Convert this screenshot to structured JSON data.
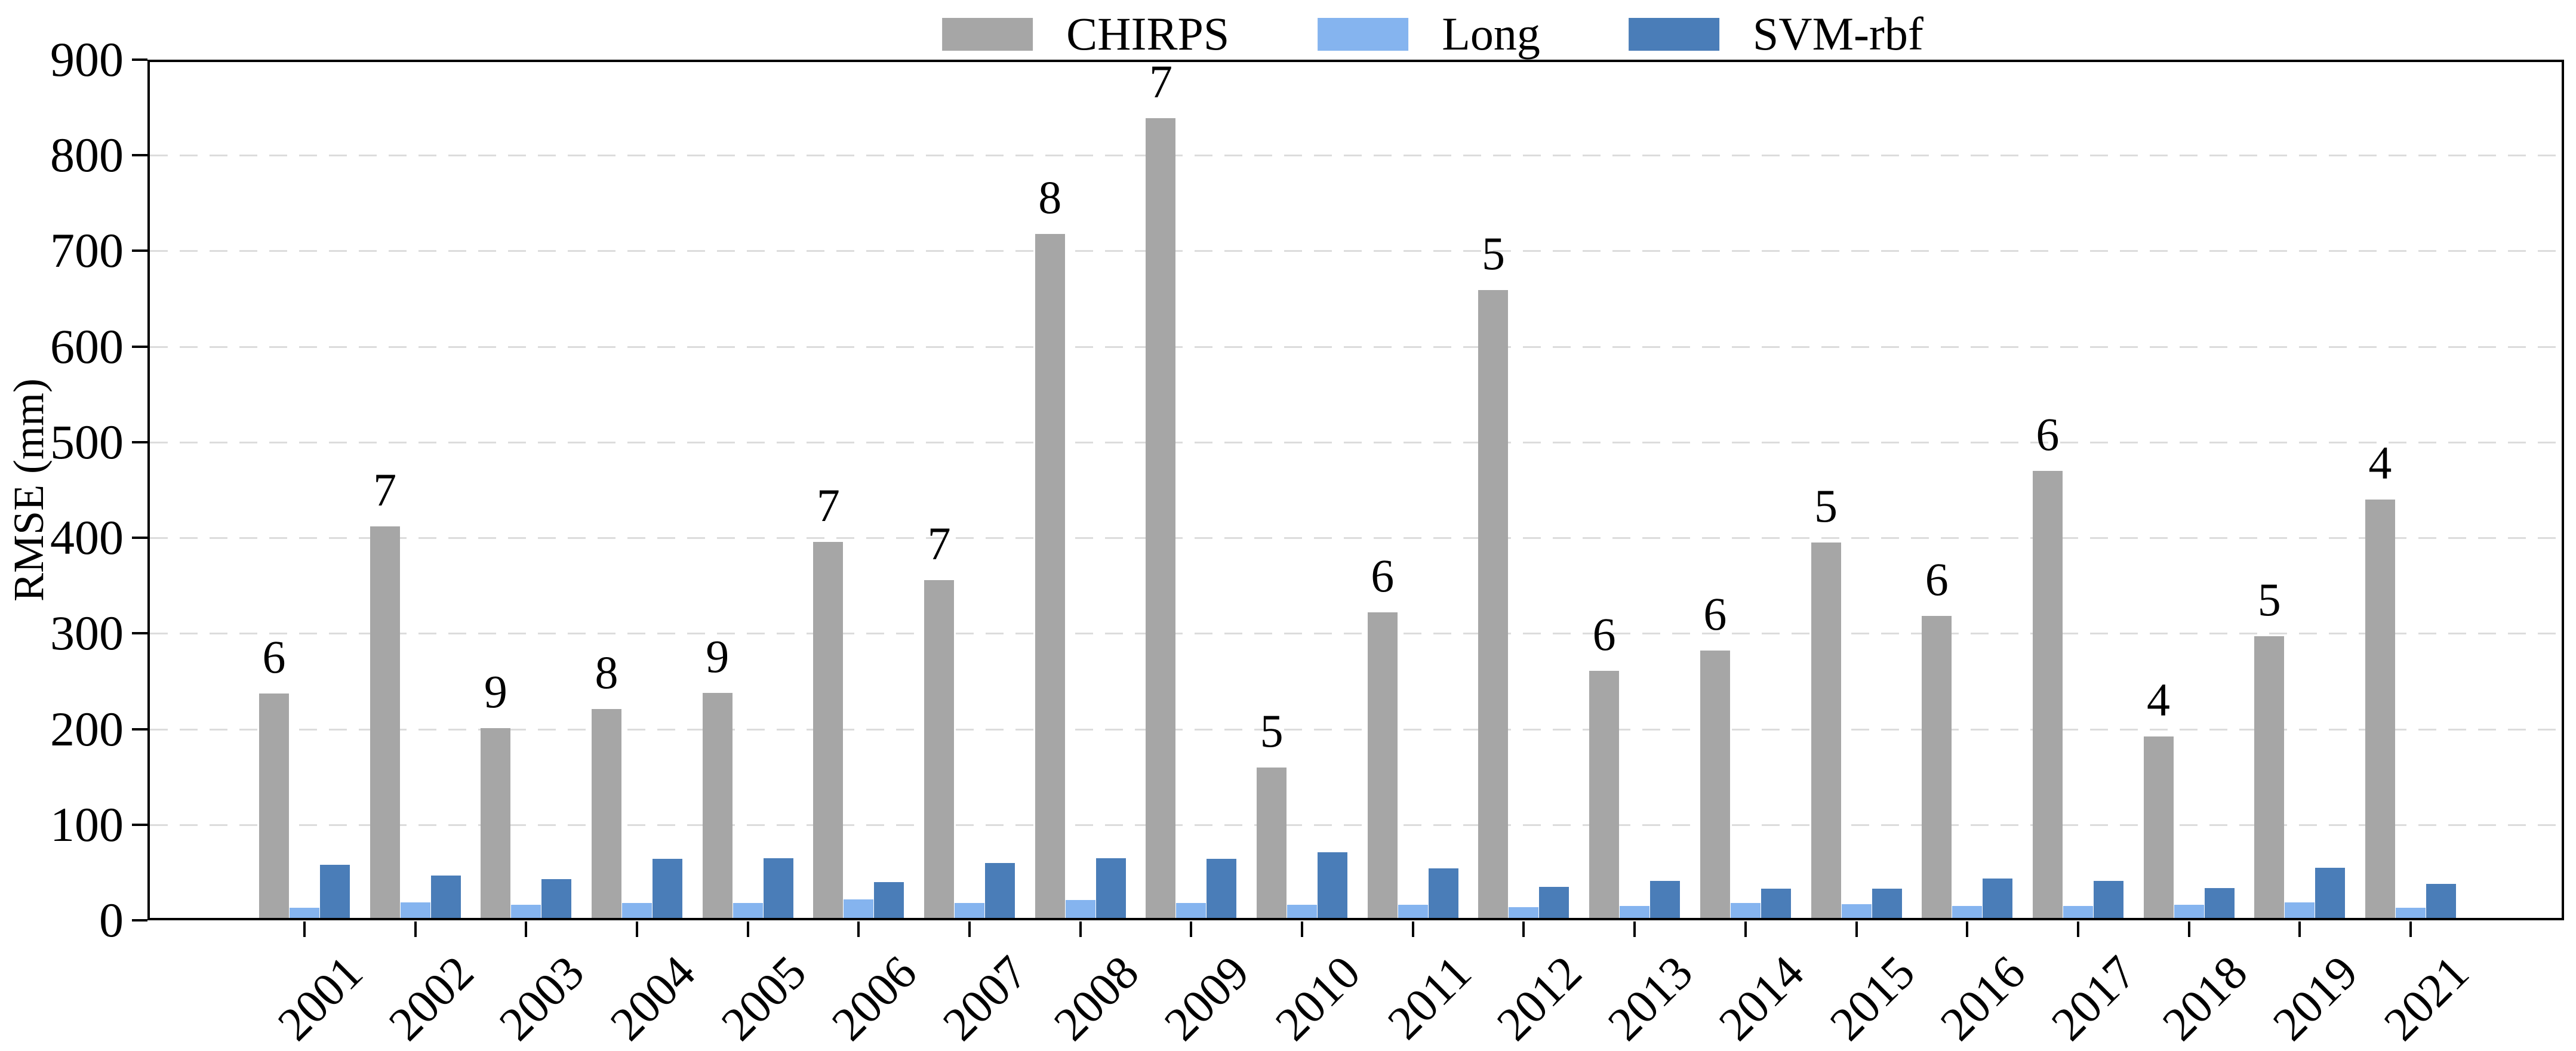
{
  "figure": {
    "background": "#ffffff",
    "spine_color": "#000000",
    "gridline_color": "#dcdcdc"
  },
  "legend": {
    "position": "top-center",
    "items": [
      {
        "label": "CHIRPS",
        "color": "#a6a6a6"
      },
      {
        "label": "Long",
        "color": "#85b4ef"
      },
      {
        "label": "SVM-rbf",
        "color": "#4a7db8"
      }
    ]
  },
  "chart_data": {
    "type": "bar",
    "title": "",
    "xlabel": "",
    "ylabel": "RMSE (mm)",
    "ylim": [
      0,
      900
    ],
    "ytick_labels": [
      "0",
      "100",
      "200",
      "300",
      "400",
      "500",
      "600",
      "700",
      "800",
      "900"
    ],
    "grid": "horizontal-dashed",
    "legend_position": "top-center",
    "categories": [
      "2001",
      "2002",
      "2003",
      "2004",
      "2005",
      "2006",
      "2007",
      "2008",
      "2009",
      "2010",
      "2011",
      "2012",
      "2013",
      "2014",
      "2015",
      "2016",
      "2017",
      "2018",
      "2019",
      "2021"
    ],
    "series": [
      {
        "name": "CHIRPS",
        "color": "#a6a6a6",
        "values": [
          237,
          412,
          201,
          221,
          238,
          396,
          356,
          718,
          839,
          160,
          322,
          659,
          261,
          282,
          395,
          318,
          470,
          192,
          297,
          440
        ]
      },
      {
        "name": "Long",
        "color": "#85b4ef",
        "values": [
          13,
          19,
          16,
          18,
          18,
          22,
          18,
          21,
          18,
          16,
          16,
          14,
          15,
          18,
          17,
          15,
          15,
          16,
          19,
          13
        ]
      },
      {
        "name": "SVM-rbf",
        "color": "#4a7db8",
        "values": [
          58,
          47,
          43,
          64,
          65,
          40,
          60,
          65,
          64,
          71,
          54,
          35,
          41,
          33,
          33,
          44,
          41,
          34,
          55,
          38
        ]
      }
    ],
    "bar_annotations": {
      "above_series": "CHIRPS",
      "values": [
        "6",
        "7",
        "9",
        "8",
        "9",
        "7",
        "7",
        "8",
        "7",
        "5",
        "6",
        "5",
        "6",
        "6",
        "5",
        "6",
        "6",
        "4",
        "5",
        "4"
      ]
    }
  }
}
